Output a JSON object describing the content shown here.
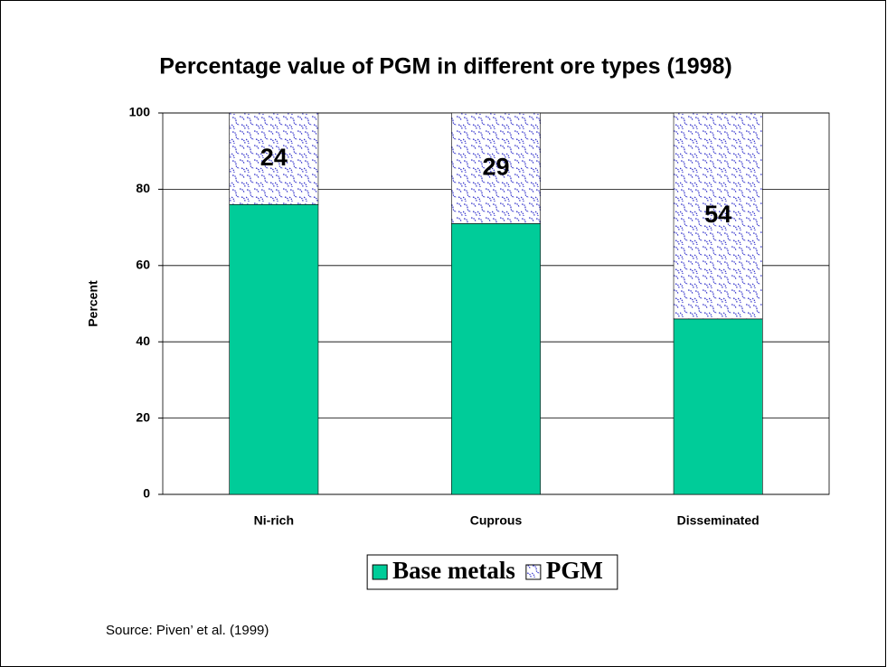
{
  "chart_data": {
    "type": "stacked_bar",
    "title": "Percentage value of PGM in different ore types (1998)",
    "y_label": "Percent",
    "categories": [
      "Ni-rich",
      "Cuprous",
      "Disseminated"
    ],
    "series": [
      {
        "name": "Base metals",
        "color": "#00cc99",
        "values": [
          76,
          71,
          46
        ]
      },
      {
        "name": "PGM",
        "color": "#3333cc",
        "pattern": true,
        "labels": true,
        "values": [
          24,
          29,
          54
        ]
      }
    ],
    "ylim": [
      0,
      100
    ],
    "yticks": [
      0,
      20,
      40,
      60,
      80,
      100
    ],
    "grid": true,
    "legend": "bottom",
    "source": "Source: Piven’ et al. (1999)"
  }
}
